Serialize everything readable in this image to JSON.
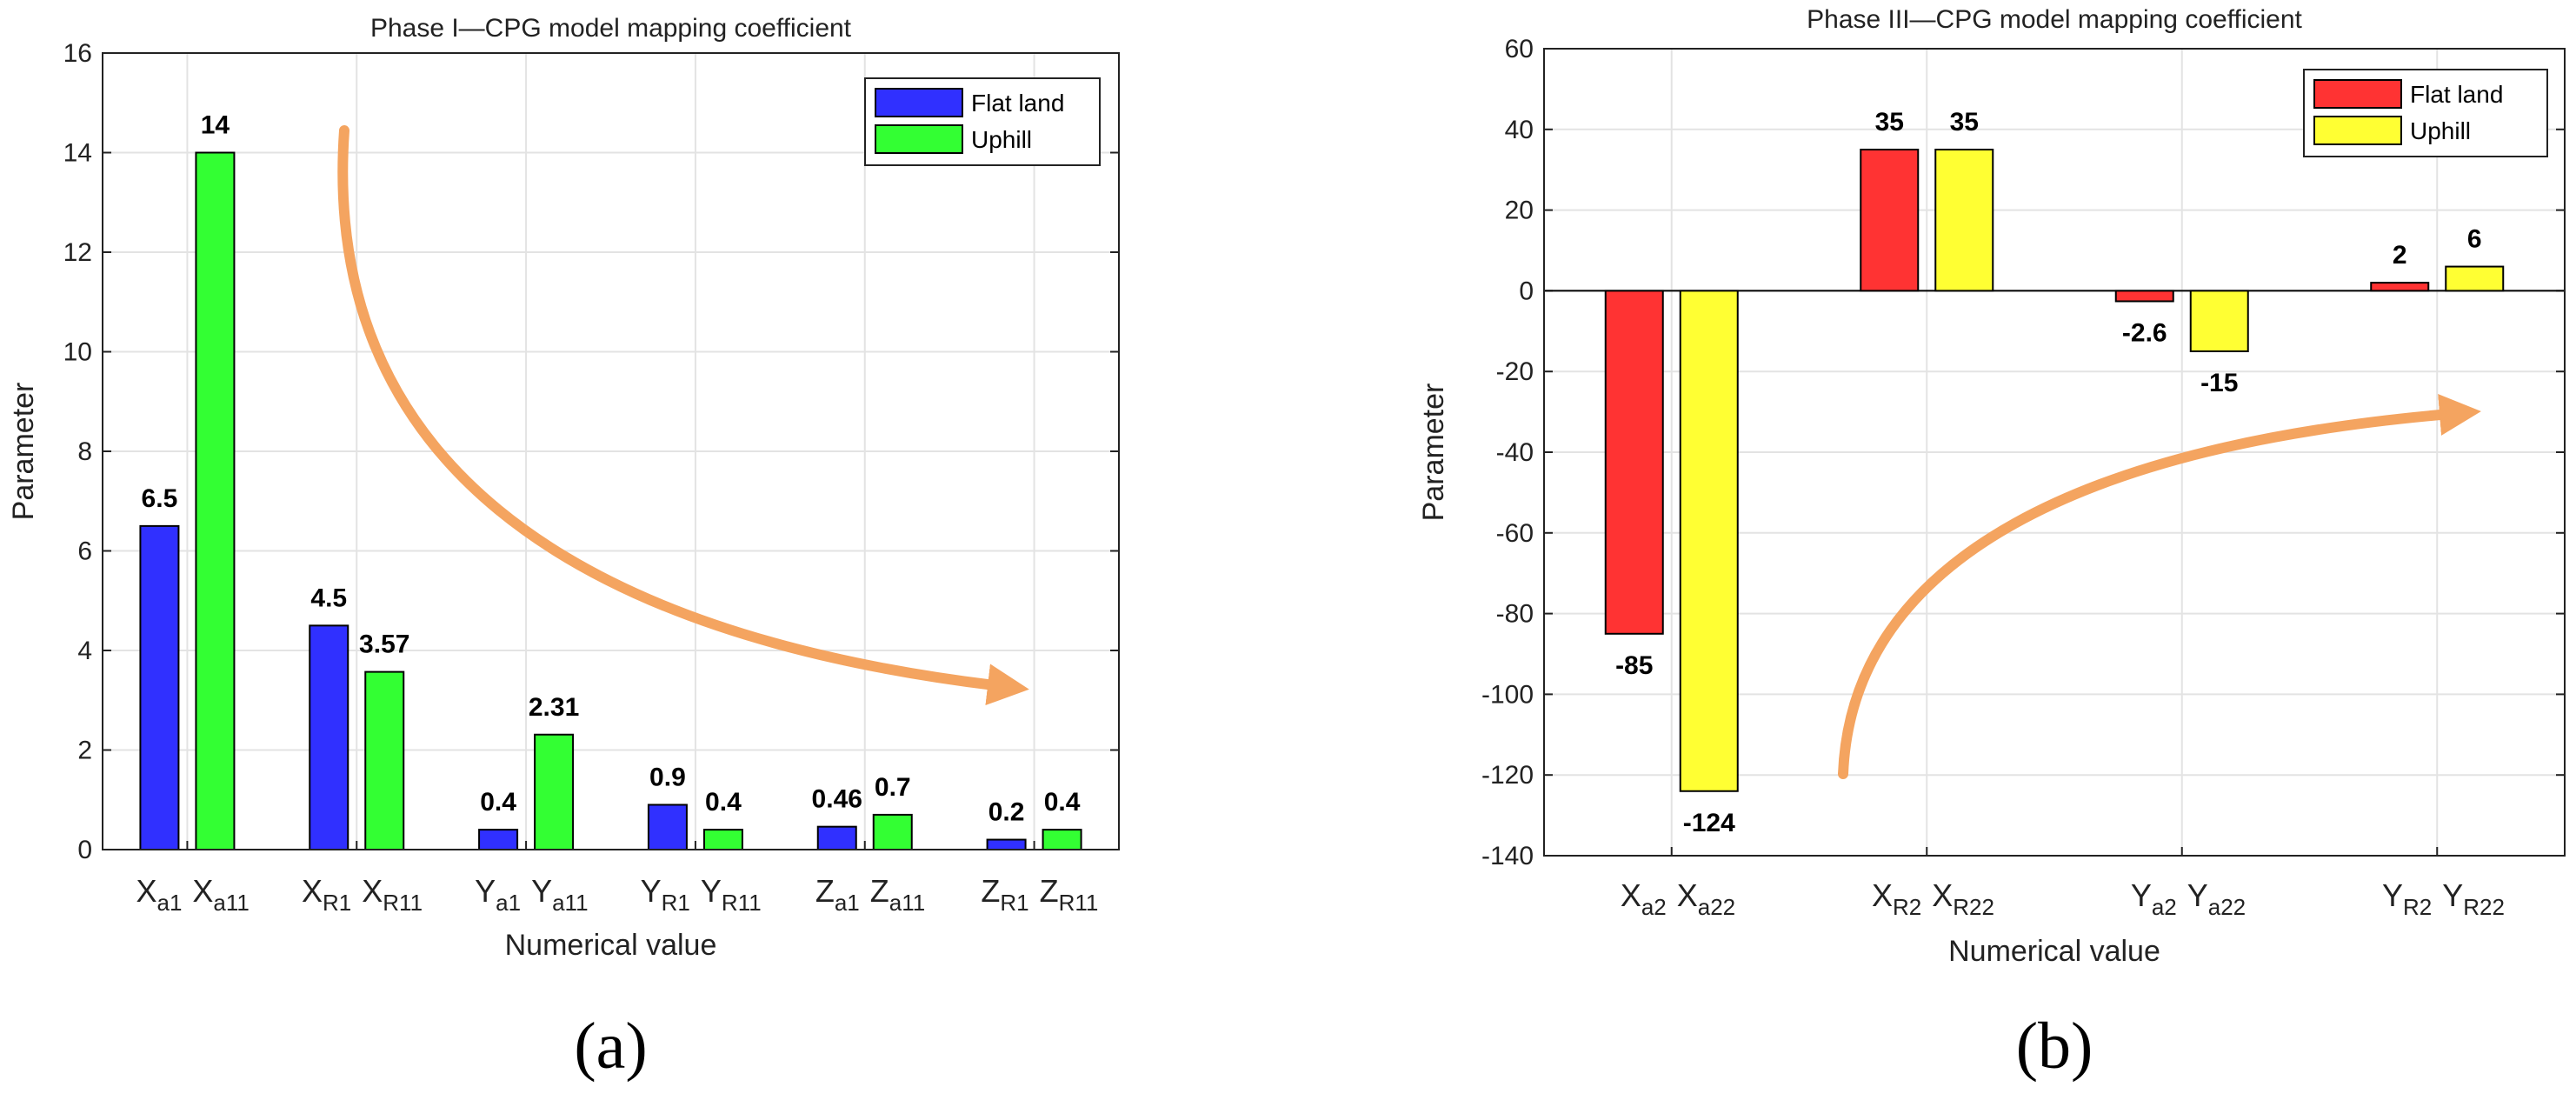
{
  "chart_data": [
    {
      "type": "bar",
      "title": "Phase I—CPG model mapping coefficient",
      "xlabel": "Numerical value",
      "ylabel": "Parameter",
      "ylim": [
        0,
        16
      ],
      "yticks": [
        0,
        2,
        4,
        6,
        8,
        10,
        12,
        14,
        16
      ],
      "grid": true,
      "legend_position": "top-right",
      "panel_label": "(a)",
      "series": [
        {
          "name": "Flat land",
          "color": "#3030ff",
          "values": [
            6.5,
            4.5,
            0.4,
            0.9,
            0.46,
            0.2
          ]
        },
        {
          "name": "Uphill",
          "color": "#33ff33",
          "values": [
            14,
            3.57,
            2.31,
            0.4,
            0.7,
            0.4
          ]
        }
      ],
      "categories": [
        [
          {
            "base": "X",
            "sub": "a1"
          },
          {
            "base": "X",
            "sub": "a11"
          }
        ],
        [
          {
            "base": "X",
            "sub": "R1"
          },
          {
            "base": "X",
            "sub": "R11"
          }
        ],
        [
          {
            "base": "Y",
            "sub": "a1"
          },
          {
            "base": "Y",
            "sub": "a11"
          }
        ],
        [
          {
            "base": "Y",
            "sub": "R1"
          },
          {
            "base": "Y",
            "sub": "R11"
          }
        ],
        [
          {
            "base": "Z",
            "sub": "a1"
          },
          {
            "base": "Z",
            "sub": "a11"
          }
        ],
        [
          {
            "base": "Z",
            "sub": "R1"
          },
          {
            "base": "Z",
            "sub": "R11"
          }
        ]
      ],
      "data_labels": [
        [
          "6.5",
          "14"
        ],
        [
          "4.5",
          "3.57"
        ],
        [
          "0.4",
          "2.31"
        ],
        [
          "0.9",
          "0.4"
        ],
        [
          "0.46",
          "0.7"
        ],
        [
          "0.2",
          "0.4"
        ]
      ],
      "annotation": {
        "type": "arrow",
        "color": "#f4a460",
        "direction": "downward-right"
      }
    },
    {
      "type": "bar",
      "title": "Phase III—CPG model mapping coefficient",
      "xlabel": "Numerical value",
      "ylabel": "Parameter",
      "ylim": [
        -140,
        60
      ],
      "yticks": [
        -140,
        -120,
        -100,
        -80,
        -60,
        -40,
        -20,
        0,
        20,
        40,
        60
      ],
      "grid": true,
      "legend_position": "top-right",
      "panel_label": "(b)",
      "series": [
        {
          "name": "Flat land",
          "color": "#ff3333",
          "values": [
            -85,
            35,
            -2.6,
            2
          ]
        },
        {
          "name": "Uphill",
          "color": "#ffff33",
          "values": [
            -124,
            35,
            -15,
            6
          ]
        }
      ],
      "categories": [
        [
          {
            "base": "X",
            "sub": "a2"
          },
          {
            "base": "X",
            "sub": "a22"
          }
        ],
        [
          {
            "base": "X",
            "sub": "R2"
          },
          {
            "base": "X",
            "sub": "R22"
          }
        ],
        [
          {
            "base": "Y",
            "sub": "a2"
          },
          {
            "base": "Y",
            "sub": "a22"
          }
        ],
        [
          {
            "base": "Y",
            "sub": "R2"
          },
          {
            "base": "Y",
            "sub": "R22"
          }
        ]
      ],
      "data_labels": [
        [
          "-85",
          "-124"
        ],
        [
          "35",
          "35"
        ],
        [
          "-2.6",
          "-15"
        ],
        [
          "2",
          "6"
        ]
      ],
      "annotation": {
        "type": "arrow",
        "color": "#f4a460",
        "direction": "upward-right"
      }
    }
  ]
}
